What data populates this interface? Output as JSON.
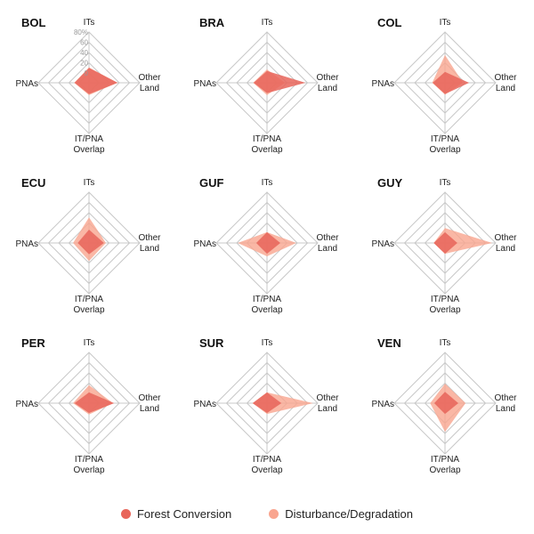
{
  "chart_data": {
    "type": "radar",
    "axes": [
      "ITs",
      "Other Land",
      "IT/PNA Overlap",
      "PNAs"
    ],
    "axis_labels": {
      "ITs": [
        "ITs"
      ],
      "Other Land": [
        "Other",
        "Land"
      ],
      "IT/PNA Overlap": [
        "IT/PNA",
        "Overlap"
      ],
      "PNAs": [
        "PNAs"
      ]
    },
    "rlim": [
      0,
      80
    ],
    "ticks": [
      0,
      20,
      40,
      60,
      80
    ],
    "tick_labels": [
      "0",
      "20",
      "40",
      "60",
      "80%"
    ],
    "grid": true,
    "legend_position": "bottom",
    "series_names": [
      "Forest Conversion",
      "Disturbance/Degradation"
    ],
    "series_colors": {
      "Forest Conversion": "#e8655a",
      "Disturbance/Degradation": "#f9a58f"
    },
    "panels": [
      {
        "title": "BOL",
        "show_ticks": true,
        "series": [
          {
            "name": "Disturbance/Degradation",
            "values": [
              11,
              36,
              5,
              10
            ]
          },
          {
            "name": "Forest Conversion",
            "values": [
              10,
              37,
              3,
              9
            ]
          }
        ]
      },
      {
        "title": "BRA",
        "show_ticks": false,
        "series": [
          {
            "name": "Disturbance/Degradation",
            "values": [
              7,
              16,
              5,
              8
            ]
          },
          {
            "name": "Forest Conversion",
            "values": [
              4,
              56,
              1,
              7
            ]
          }
        ]
      },
      {
        "title": "COL",
        "show_ticks": false,
        "series": [
          {
            "name": "Disturbance/Degradation",
            "values": [
              35,
              16,
              4,
              6
            ]
          },
          {
            "name": "Forest Conversion",
            "values": [
              2,
              28,
              3,
              5
            ]
          }
        ]
      },
      {
        "title": "ECU",
        "show_ticks": false,
        "series": [
          {
            "name": "Disturbance/Degradation",
            "values": [
              31,
              14,
              16,
              12
            ]
          },
          {
            "name": "Forest Conversion",
            "values": [
              7,
              10,
              3,
              3
            ]
          }
        ]
      },
      {
        "title": "GUF",
        "show_ticks": false,
        "series": [
          {
            "name": "Disturbance/Degradation",
            "values": [
              2,
              38,
              7,
              38
            ]
          },
          {
            "name": "Forest Conversion",
            "values": [
              2,
              7,
              2,
              2
            ]
          }
        ]
      },
      {
        "title": "GUY",
        "show_ticks": false,
        "series": [
          {
            "name": "Disturbance/Degradation",
            "values": [
              10,
              73,
              2,
              3
            ]
          },
          {
            "name": "Forest Conversion",
            "values": [
              2,
              5,
              2,
              3
            ]
          }
        ]
      },
      {
        "title": "PER",
        "show_ticks": false,
        "series": [
          {
            "name": "Disturbance/Degradation",
            "values": [
              16,
              28,
              3,
              12
            ]
          },
          {
            "name": "Forest Conversion",
            "values": [
              2,
              30,
              0,
              9
            ]
          }
        ]
      },
      {
        "title": "SUR",
        "show_ticks": false,
        "series": [
          {
            "name": "Disturbance/Degradation",
            "values": [
              2,
              71,
              2,
              9
            ]
          },
          {
            "name": "Forest Conversion",
            "values": [
              2,
              9,
              0,
              9
            ]
          }
        ]
      },
      {
        "title": "VEN",
        "show_ticks": false,
        "series": [
          {
            "name": "Disturbance/Degradation",
            "values": [
              19,
              21,
              37,
              10
            ]
          },
          {
            "name": "Forest Conversion",
            "values": [
              3,
              7,
              2,
              2
            ]
          }
        ]
      }
    ]
  },
  "legend": {
    "items": [
      {
        "label": "Forest Conversion",
        "color": "#e8655a"
      },
      {
        "label": "Disturbance/Degradation",
        "color": "#f9a58f"
      }
    ]
  }
}
